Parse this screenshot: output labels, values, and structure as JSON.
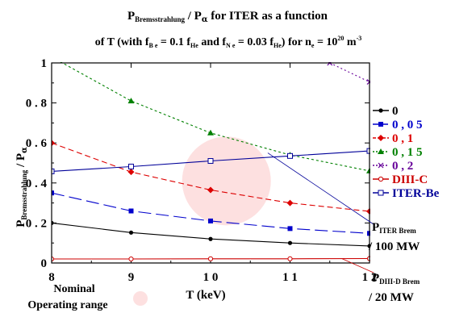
{
  "chart_data": {
    "type": "line",
    "title": {
      "line1": {
        "p": "P",
        "p_sub": "Bremsstrahlung",
        "slash": " / P",
        "alpha": "α",
        "rest": "  for ITER as a function"
      },
      "line2": {
        "a": "of T (with f",
        "be_sub": "B e",
        "b": " = 0.1 f",
        "he_sub1": "He",
        "c": " and f",
        "ne_sub": "N e",
        "d": " = 0.03 f",
        "he_sub2": "He",
        "e": ") for n",
        "e_sub": "e",
        "f": " = 10",
        "exp": "20",
        "g": " m",
        "exp2": "-3"
      }
    },
    "ylabel": {
      "p": "P",
      "sub": "Bremsstrahlung",
      "slash": " / P",
      "alpha": "α"
    },
    "xlabel": "T  (keV)",
    "xlim": [
      8,
      12
    ],
    "ylim": [
      0,
      1
    ],
    "xticks": [
      {
        "v": 8,
        "label": "8"
      },
      {
        "v": 9,
        "label": "9"
      },
      {
        "v": 10,
        "label": "1 0"
      },
      {
        "v": 11,
        "label": "1 1"
      },
      {
        "v": 12,
        "label": "1 2"
      }
    ],
    "yticks": [
      {
        "v": 0,
        "label": "0"
      },
      {
        "v": 0.2,
        "label": "0 . 2"
      },
      {
        "v": 0.4,
        "label": "0 . 4"
      },
      {
        "v": 0.6,
        "label": "0 . 6"
      },
      {
        "v": 0.8,
        "label": "0 . 8"
      },
      {
        "v": 1,
        "label": "1"
      }
    ],
    "series": [
      {
        "name": "0",
        "color": "#000000",
        "dash": "",
        "marker": "circle",
        "x": [
          8,
          9,
          10,
          11,
          12
        ],
        "y": [
          0.2,
          0.152,
          0.12,
          0.1,
          0.085
        ]
      },
      {
        "name": "0 , 0 5",
        "color": "#0000cc",
        "dash": "16,6",
        "marker": "square",
        "x": [
          8,
          9,
          10,
          11,
          12
        ],
        "y": [
          0.35,
          0.26,
          0.21,
          0.172,
          0.148
        ]
      },
      {
        "name": "0 , 1",
        "color": "#dd0000",
        "dash": "7,4",
        "marker": "diamond",
        "x": [
          8,
          9,
          10,
          11,
          12
        ],
        "y": [
          0.6,
          0.455,
          0.365,
          0.3,
          0.258
        ]
      },
      {
        "name": "0 , 1 5",
        "color": "#008000",
        "dash": "3,3",
        "marker": "triangle",
        "x": [
          8,
          9,
          10,
          11,
          12
        ],
        "y": [
          1.03,
          0.81,
          0.65,
          0.54,
          0.46
        ]
      },
      {
        "name": "0 , 2",
        "color": "#660099",
        "dash": "2,3",
        "marker": "cross",
        "x": [
          11.5,
          12
        ],
        "y": [
          1.0,
          0.905
        ]
      },
      {
        "name": "DIII-C",
        "color": "#cc0000",
        "dash": "",
        "marker": "circle-open",
        "x": [
          8,
          9,
          10,
          11,
          12
        ],
        "y": [
          0.02,
          0.02,
          0.021,
          0.021,
          0.022
        ]
      },
      {
        "name": "ITER-Be",
        "color": "#000099",
        "dash": "",
        "marker": "square-open",
        "x": [
          8,
          9,
          10,
          11,
          12
        ],
        "y": [
          0.458,
          0.482,
          0.51,
          0.535,
          0.56
        ]
      }
    ],
    "legend_position": "right",
    "annotations": {
      "iter": {
        "p": "P",
        "sub": "ITER Brem",
        "line2": "/ 100  MW",
        "target_x": 10.72,
        "target_y": 0.55
      },
      "diii": {
        "p": "P",
        "sub": "DIII-D Brem",
        "line2": "/ 20  MW",
        "target_x": 11.65,
        "target_y": 0.022
      },
      "nominal": {
        "line1": "Nominal",
        "line2": "Operating range",
        "highlight_color": "#fde0e0",
        "circle_x": 10.2,
        "circle_y": 0.41
      }
    }
  }
}
